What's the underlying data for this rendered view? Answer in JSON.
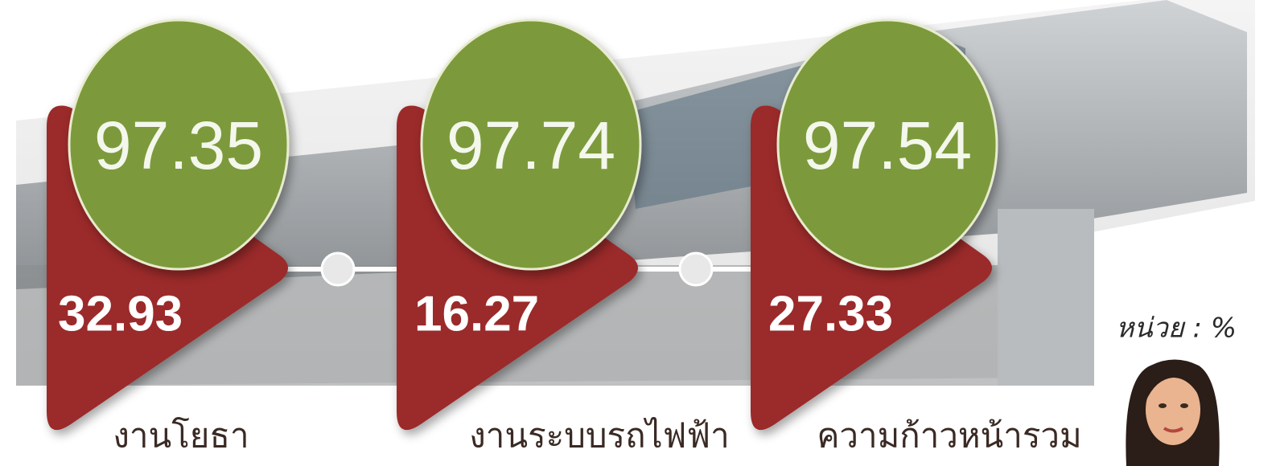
{
  "items": [
    {
      "overall": 97.35,
      "current": 32.93,
      "label": "งานโยธา"
    },
    {
      "overall": 97.74,
      "current": 16.27,
      "label": "งานระบบรถไฟฟ้า"
    },
    {
      "overall": 97.54,
      "current": 27.33,
      "label": "ความก้าวหน้ารวม"
    }
  ],
  "unit": "หน่วย : %"
}
